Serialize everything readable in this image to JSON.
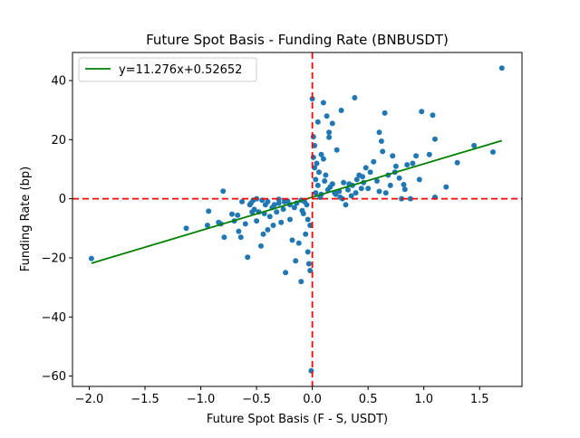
{
  "chart_data": {
    "type": "scatter",
    "title": "Future Spot Basis - Funding Rate (BNBUSDT)",
    "xlabel": "Future Spot Basis (F - S, USDT)",
    "ylabel": "Funding Rate (bp)",
    "xlim": [
      -2.15,
      1.88
    ],
    "ylim": [
      -63.5,
      49.5
    ],
    "x_ticks": [
      -2.0,
      -1.5,
      -1.0,
      -0.5,
      0.0,
      0.5,
      1.0,
      1.5
    ],
    "x_tick_labels": [
      "−2.0",
      "−1.5",
      "−1.0",
      "−0.5",
      "0.0",
      "0.5",
      "1.0",
      "1.5"
    ],
    "y_ticks": [
      -60,
      -40,
      -20,
      0,
      20,
      40
    ],
    "y_tick_labels": [
      "−60",
      "−40",
      "−20",
      "0",
      "20",
      "40"
    ],
    "grid": false,
    "legend_placement": "top-left",
    "colors": {
      "points": "#1f77b4",
      "fit": "#008000",
      "reference": "#ff0000"
    },
    "fit_line": {
      "label": "y=11.276x+0.52652",
      "slope": 11.276,
      "intercept": 0.52652,
      "x_range": [
        -1.98,
        1.7
      ]
    },
    "reference_lines": {
      "x": 0,
      "y": 0,
      "style": "dashed"
    },
    "points": [
      [
        -1.98,
        -20.2
      ],
      [
        -1.13,
        -10
      ],
      [
        -0.94,
        -9
      ],
      [
        -0.93,
        -4.2
      ],
      [
        -0.84,
        -8
      ],
      [
        -0.82,
        -8.5
      ],
      [
        -0.79,
        -13
      ],
      [
        -0.8,
        2.6
      ],
      [
        -0.72,
        -5.2
      ],
      [
        -0.7,
        -7.5
      ],
      [
        -0.67,
        -5.6
      ],
      [
        -0.66,
        -11
      ],
      [
        -0.64,
        -13
      ],
      [
        -0.63,
        -1
      ],
      [
        -0.6,
        -8.5
      ],
      [
        -0.58,
        -19.8
      ],
      [
        -0.56,
        -2
      ],
      [
        -0.54,
        -4.5
      ],
      [
        -0.53,
        -0.5
      ],
      [
        -0.52,
        -3.6
      ],
      [
        -0.5,
        -7.5
      ],
      [
        -0.48,
        -4.5
      ],
      [
        -0.46,
        -16
      ],
      [
        -0.44,
        -12
      ],
      [
        -0.43,
        -5
      ],
      [
        -0.42,
        -2
      ],
      [
        -0.4,
        -1
      ],
      [
        -0.4,
        -10.5
      ],
      [
        -0.38,
        -6
      ],
      [
        -0.36,
        -3
      ],
      [
        -0.35,
        -9
      ],
      [
        -0.34,
        -2
      ],
      [
        -0.32,
        -4.5
      ],
      [
        -0.3,
        -1.5
      ],
      [
        -0.28,
        -8
      ],
      [
        -0.26,
        -3.5
      ],
      [
        -0.24,
        -25
      ],
      [
        -0.2,
        -7
      ],
      [
        -0.18,
        -14
      ],
      [
        -0.15,
        -21
      ],
      [
        -0.1,
        -28
      ],
      [
        -0.12,
        -15
      ],
      [
        -0.08,
        -5
      ],
      [
        -0.06,
        -12
      ],
      [
        -0.04,
        -18
      ],
      [
        -0.03,
        -22
      ],
      [
        -0.02,
        -9
      ],
      [
        -0.01,
        -58.2
      ],
      [
        -0.02,
        -24.3
      ],
      [
        -0.05,
        -2
      ],
      [
        -0.07,
        -1
      ],
      [
        -0.1,
        -0.5
      ],
      [
        -0.14,
        -1.5
      ],
      [
        -0.2,
        -2
      ],
      [
        -0.25,
        -1
      ],
      [
        -0.45,
        -0.5
      ],
      [
        -0.5,
        0
      ],
      [
        -0.55,
        -1.5
      ],
      [
        -0.3,
        -0.2
      ],
      [
        -0.22,
        -0.8
      ],
      [
        -0.16,
        -3
      ],
      [
        -0.09,
        -4
      ],
      [
        -0.04,
        -7
      ],
      [
        0,
        33.8
      ],
      [
        0.01,
        14
      ],
      [
        0.02,
        10.5
      ],
      [
        0.03,
        6.5
      ],
      [
        0.05,
        4.5
      ],
      [
        0.05,
        26
      ],
      [
        0.08,
        15
      ],
      [
        0.1,
        13.5
      ],
      [
        0.1,
        32.5
      ],
      [
        0.12,
        8
      ],
      [
        0.13,
        28
      ],
      [
        0.15,
        20.8
      ],
      [
        0.15,
        22.5
      ],
      [
        0.18,
        25.5
      ],
      [
        0.2,
        2
      ],
      [
        0.22,
        16.5
      ],
      [
        0.24,
        2.5
      ],
      [
        0.26,
        29.9
      ],
      [
        0.28,
        5.5
      ],
      [
        0.3,
        -2
      ],
      [
        0.32,
        3
      ],
      [
        0.36,
        4.5
      ],
      [
        0.38,
        34.2
      ],
      [
        0.4,
        6.5
      ],
      [
        0.42,
        8
      ],
      [
        0.44,
        3.5
      ],
      [
        0.46,
        5.5
      ],
      [
        0.48,
        10.5
      ],
      [
        0.52,
        9
      ],
      [
        0.55,
        12.5
      ],
      [
        0.6,
        22.5
      ],
      [
        0.62,
        19.5
      ],
      [
        0.63,
        16
      ],
      [
        0.65,
        29
      ],
      [
        0.68,
        8
      ],
      [
        0.7,
        4.5
      ],
      [
        0.72,
        14.5
      ],
      [
        0.75,
        11
      ],
      [
        0.78,
        7
      ],
      [
        0.8,
        0
      ],
      [
        0.83,
        3.2
      ],
      [
        0.85,
        11.5
      ],
      [
        0.88,
        0
      ],
      [
        0.9,
        12
      ],
      [
        0.93,
        14.5
      ],
      [
        0.96,
        6.5
      ],
      [
        0.98,
        29.5
      ],
      [
        1.05,
        15
      ],
      [
        1.08,
        28.3
      ],
      [
        1.1,
        20.2
      ],
      [
        1.2,
        4
      ],
      [
        1.3,
        12.2
      ],
      [
        1.45,
        18
      ],
      [
        1.62,
        15.8
      ],
      [
        1.7,
        44.2
      ],
      [
        1.1,
        0.5
      ],
      [
        0.6,
        2.5
      ],
      [
        0.35,
        1
      ],
      [
        0.25,
        0.5
      ],
      [
        0.18,
        5
      ],
      [
        0.14,
        3
      ],
      [
        0.08,
        1.5
      ],
      [
        0.06,
        9
      ],
      [
        0.04,
        12
      ],
      [
        0.02,
        18
      ],
      [
        0.01,
        21
      ],
      [
        0.03,
        2
      ],
      [
        0.07,
        0.5
      ],
      [
        0.11,
        6
      ],
      [
        0.16,
        4
      ],
      [
        0.21,
        1.5
      ],
      [
        0.27,
        0
      ],
      [
        0.33,
        5
      ],
      [
        0.39,
        2
      ],
      [
        0.45,
        7.5
      ],
      [
        0.5,
        3.5
      ],
      [
        0.58,
        6
      ],
      [
        0.66,
        2
      ],
      [
        0.74,
        9
      ],
      [
        0.82,
        4.8
      ]
    ]
  }
}
